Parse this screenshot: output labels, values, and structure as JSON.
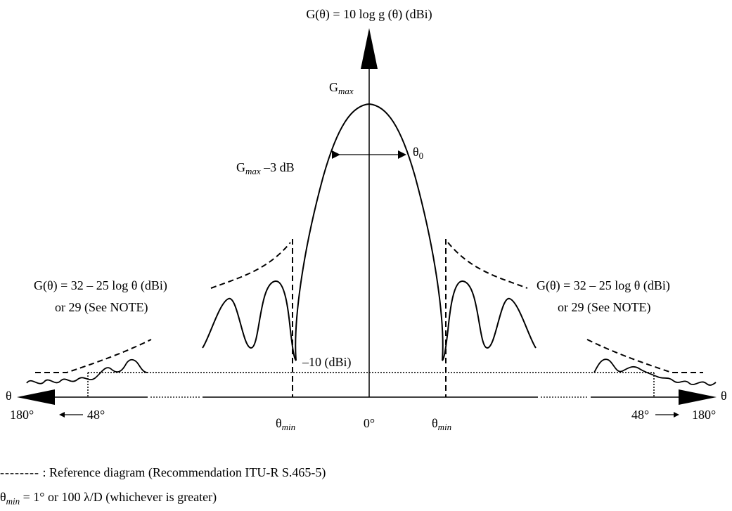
{
  "diagram": {
    "y_axis_label": "G(θ)  = 10 log g (θ) (dBi)",
    "peak_label_main": "G",
    "peak_label_sub": "max",
    "halfpower_label_main": "G",
    "halfpower_label_sub": "max",
    "halfpower_label_suffix": " –3 dB",
    "beamwidth_label_main": "θ",
    "beamwidth_label_sub": "0",
    "left_formula_line1": "G(θ)  = 32 – 25 log θ (dBi)",
    "left_formula_line2": "or 29 (See NOTE)",
    "right_formula_line1": "G(θ)  = 32 – 25 log θ (dBi)",
    "right_formula_line2": "or 29 (See NOTE)",
    "floor_label": "–10 (dBi)",
    "axis_theta_left": "θ",
    "axis_theta_right": "θ",
    "tick_180_left": "180°",
    "tick_48_left": "48°",
    "tick_theta_min_left_main": "θ",
    "tick_theta_min_left_sub": "min",
    "tick_zero": "0°",
    "tick_theta_min_right_main": "θ",
    "tick_theta_min_right_sub": "min",
    "tick_48_right": "48°",
    "tick_180_right": "180°"
  },
  "legend": {
    "dashes": "--------",
    "reference_text": " : Reference diagram (Recommendation ITU-R S.465-5)",
    "theta_min_main": "θ",
    "theta_min_sub": "min",
    "theta_min_text": " = 1° or 100 λ/D (whichever is greater)"
  }
}
